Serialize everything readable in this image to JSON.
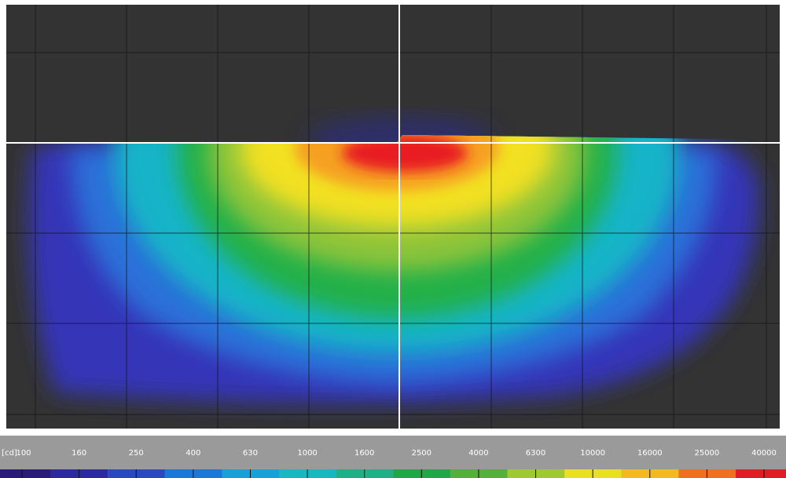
{
  "colorbar": {
    "unit": "[cd]",
    "ticks": [
      "100",
      "160",
      "250",
      "400",
      "630",
      "1000",
      "1600",
      "2500",
      "4000",
      "6300",
      "10000",
      "16000",
      "25000",
      "40000"
    ]
  }
}
